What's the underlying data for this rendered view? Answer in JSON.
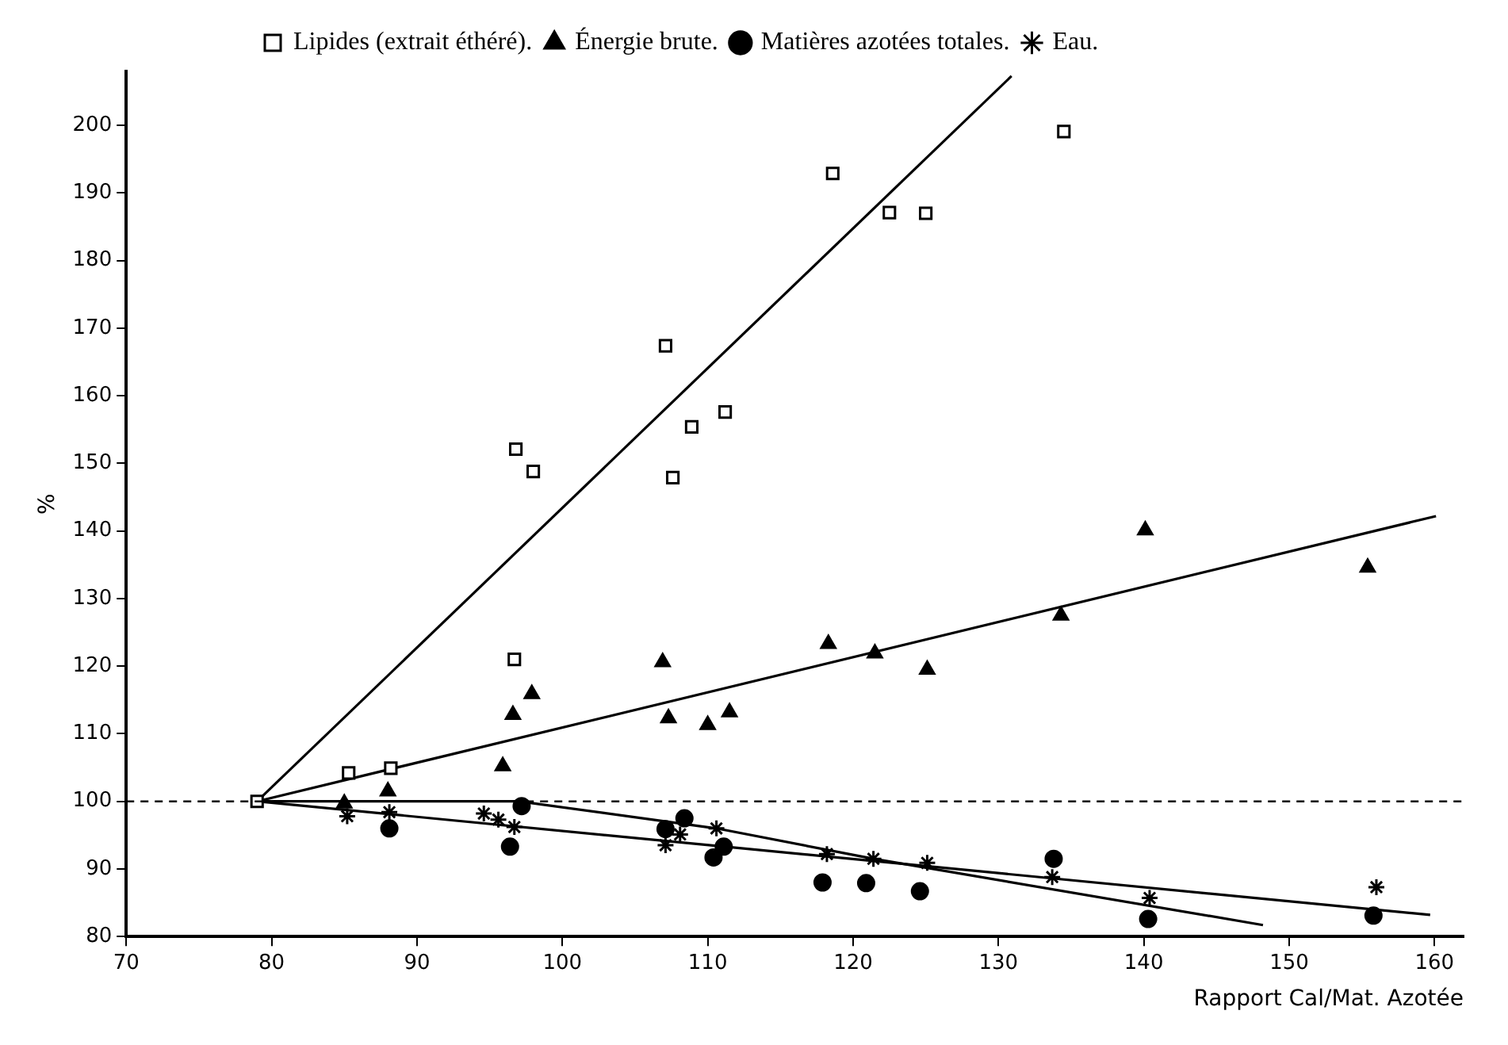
{
  "chart_data": {
    "type": "scatter",
    "xlabel": "Rapport Cal/Mat. Azotée",
    "ylabel": "%",
    "xlim": [
      70,
      162
    ],
    "xticks": [
      70,
      80,
      90,
      100,
      110,
      120,
      130,
      140,
      150,
      160
    ],
    "ylim": [
      80,
      208
    ],
    "yticks": [
      80,
      90,
      100,
      110,
      120,
      130,
      140,
      150,
      160,
      170,
      180,
      190,
      200
    ],
    "grid": false,
    "legend": "top left",
    "ref_lines": [
      {
        "axis": "y",
        "value": 100,
        "line_style": "dashed",
        "color": "#000000"
      }
    ],
    "series": [
      {
        "name": "Lipides (extrait éthéré).",
        "marker": "square",
        "color": "#000000",
        "x": [
          79,
          85.3,
          88.2,
          96.7,
          96.8,
          98.0,
          107.1,
          107.6,
          108.9,
          111.2,
          118.6,
          122.5,
          125.0,
          134.5
        ],
        "values": [
          100,
          104.2,
          104.9,
          121.0,
          152.1,
          148.8,
          167.4,
          147.9,
          155.4,
          157.6,
          192.9,
          187.1,
          187.0,
          199.1
        ]
      },
      {
        "name": "Énergie brute.",
        "marker": "triangle",
        "color": "#000000",
        "x": [
          85.0,
          88.0,
          95.9,
          96.6,
          97.9,
          106.9,
          107.3,
          110.0,
          111.5,
          118.3,
          121.5,
          125.1,
          134.3,
          140.1,
          155.4
        ],
        "values": [
          99.7,
          101.5,
          105.2,
          112.8,
          115.9,
          120.6,
          112.3,
          111.3,
          113.2,
          123.3,
          121.9,
          119.5,
          127.5,
          140.1,
          134.6
        ]
      },
      {
        "name": "Matières azotées totales.",
        "marker": "circle",
        "color": "#000000",
        "x": [
          88.1,
          96.4,
          97.2,
          107.1,
          108.4,
          110.4,
          111.1,
          117.9,
          120.9,
          124.6,
          133.8,
          140.3,
          155.8
        ],
        "values": [
          96.0,
          93.3,
          99.3,
          95.9,
          97.5,
          91.7,
          93.3,
          88.0,
          87.9,
          86.7,
          91.5,
          82.6,
          83.1
        ]
      },
      {
        "name": "Eau.",
        "marker": "cross",
        "color": "#000000",
        "x": [
          85.2,
          88.1,
          94.6,
          95.6,
          96.7,
          107.1,
          108.1,
          110.6,
          118.2,
          121.4,
          125.1,
          133.7,
          140.4,
          156.0
        ],
        "values": [
          97.8,
          98.4,
          98.2,
          97.3,
          96.2,
          93.5,
          95.1,
          96.0,
          92.2,
          91.5,
          90.9,
          88.8,
          85.7,
          87.3
        ]
      },
      {
        "type": "line",
        "marker": "none",
        "color": "#000000",
        "x": [
          79,
          130.9
        ],
        "values": [
          100,
          207.3
        ]
      },
      {
        "type": "line",
        "marker": "none",
        "color": "#000000",
        "x": [
          79,
          160.1
        ],
        "values": [
          100,
          142.2
        ]
      },
      {
        "type": "line",
        "marker": "none",
        "color": "#000000",
        "x": [
          79,
          97,
          110.6,
          121.4,
          148.2
        ],
        "values": [
          100,
          100,
          96.0,
          91.5,
          81.7
        ]
      },
      {
        "type": "line",
        "marker": "none",
        "color": "#000000",
        "x": [
          79,
          159.7
        ],
        "values": [
          100,
          83.2
        ]
      }
    ]
  }
}
